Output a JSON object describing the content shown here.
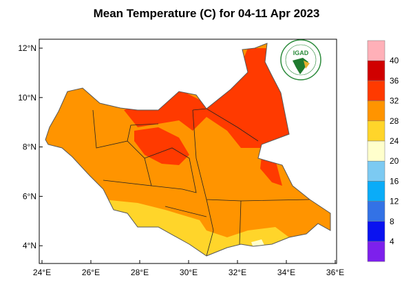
{
  "title": "Mean Temperature (C) for 04-11 Apr 2023",
  "logo_text": "IGAD",
  "map": {
    "region": "South Sudan",
    "lon_ticks": [
      "24°E",
      "26°E",
      "28°E",
      "30°E",
      "32°E",
      "34°E",
      "36°E"
    ],
    "lat_ticks": [
      "12°N",
      "10°N",
      "8°N",
      "6°N",
      "4°N"
    ]
  },
  "colorbar": {
    "labels": [
      "40",
      "36",
      "32",
      "28",
      "24",
      "20",
      "16",
      "12",
      "8",
      "4"
    ],
    "colors": [
      "#ffb0b8",
      "#d00000",
      "#ff3a00",
      "#ff9400",
      "#ffd52a",
      "#ffffcc",
      "#7ccaf2",
      "#0aacf8",
      "#3372e6",
      "#0a12f0",
      "#7d20ec"
    ]
  }
}
